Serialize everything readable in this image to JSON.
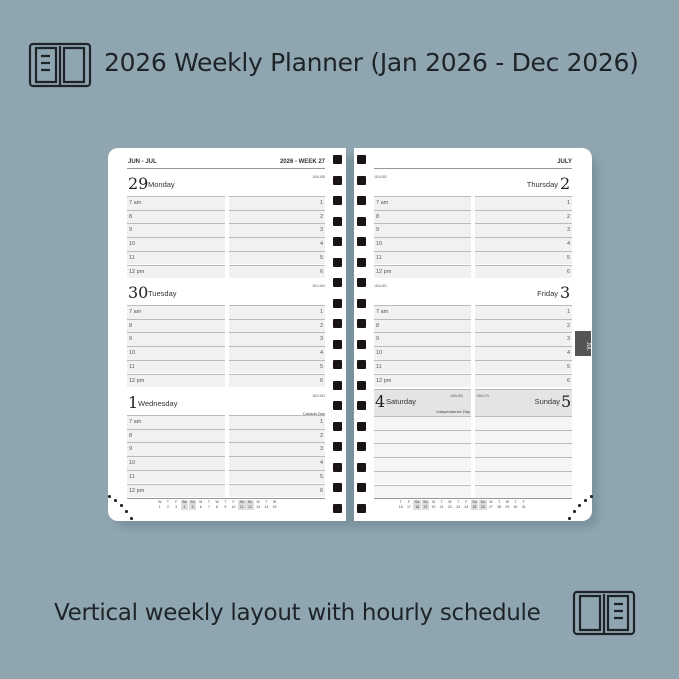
{
  "title": "2026 Weekly Planner (Jan 2026 - Dec 2026)",
  "caption": "Vertical weekly layout with hourly schedule",
  "icons": {
    "top": "open-book-icon",
    "bottom": "open-book-icon"
  },
  "planner": {
    "left_header": "JUN - JUL",
    "left_week": "2026 - WEEK 27",
    "right_header": "JULY",
    "tab": "JUL",
    "hours": [
      "7 am",
      "8",
      "9",
      "10",
      "11",
      "12 pm"
    ],
    "numbers": [
      "1",
      "2",
      "3",
      "4",
      "5",
      "6"
    ],
    "days": [
      {
        "num": "29",
        "name": "Monday",
        "count": "180•185"
      },
      {
        "num": "30",
        "name": "Tuesday",
        "count": "181•184"
      },
      {
        "num": "1",
        "name": "Wednesday",
        "count": "182•183",
        "holiday": "Canada Day"
      },
      {
        "num": "2",
        "name": "Thursday",
        "count": "183•182"
      },
      {
        "num": "3",
        "name": "Friday",
        "count": "184•181"
      },
      {
        "num": "4",
        "name": "Saturday",
        "count": "185•180",
        "holiday": "Independence Day"
      },
      {
        "num": "5",
        "name": "Sunday",
        "count": "186•179"
      }
    ],
    "mini_left": {
      "days": [
        "W",
        "T",
        "F",
        "Sa",
        "Su",
        "M",
        "T",
        "W",
        "T",
        "F",
        "Sa",
        "Su",
        "M",
        "T",
        "W"
      ],
      "dates": [
        "1",
        "2",
        "3",
        "4",
        "5",
        "6",
        "7",
        "8",
        "9",
        "10",
        "11",
        "12",
        "13",
        "14",
        "15"
      ]
    },
    "mini_right": {
      "days": [
        "T",
        "F",
        "Sa",
        "Su",
        "M",
        "T",
        "W",
        "T",
        "F",
        "Sa",
        "Su",
        "M",
        "T",
        "W",
        "T",
        "F"
      ],
      "dates": [
        "16",
        "17",
        "18",
        "19",
        "20",
        "21",
        "22",
        "23",
        "24",
        "25",
        "26",
        "27",
        "28",
        "29",
        "30",
        "31"
      ]
    }
  }
}
